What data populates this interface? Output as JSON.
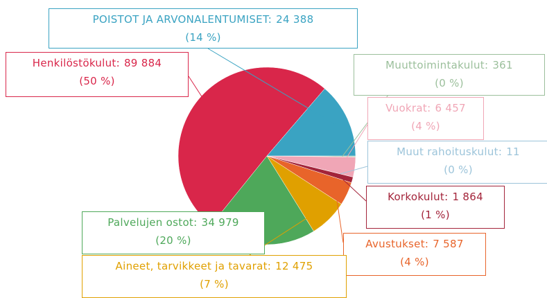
{
  "chart_data": {
    "type": "pie",
    "categories": [
      "Muuttoimintakulut",
      "Vuokrat",
      "Muut rahoituskulut",
      "Korkokulut",
      "Avustukset",
      "Aineet, tarvikkeet ja tavarat",
      "Palvelujen ostot",
      "Henkilöstökulut",
      "POISTOT JA ARVONALENTUMISET"
    ],
    "values": [
      361,
      6457,
      11,
      1864,
      7587,
      12475,
      34979,
      89884,
      24388
    ],
    "value_labels": [
      "361",
      "6 457",
      "11",
      "1 864",
      "7 587",
      "12 475",
      "34 979",
      "89 884",
      "24 388"
    ],
    "percent_labels": [
      "(0 %)",
      "(4 %)",
      "(0 %)",
      "(1 %)",
      "(4 %)",
      "(7 %)",
      "(20 %)",
      "(50 %)",
      "(14 %)"
    ],
    "label_separator": ":",
    "colors": [
      "#9bbf9b",
      "#f0a6b6",
      "#9cc4da",
      "#a3243a",
      "#e8642a",
      "#e0a000",
      "#4ea85a",
      "#d9264a",
      "#3aa3c2"
    ]
  }
}
